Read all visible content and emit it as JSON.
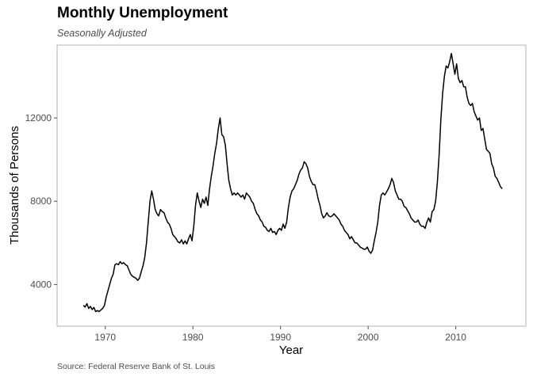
{
  "chart_data": {
    "type": "line",
    "title": "Monthly Unemployment",
    "subtitle": "Seasonally Adjusted",
    "caption": "Source: Federal Reserve Bank of St. Louis",
    "xlabel": "Year",
    "ylabel": "Thousands of Persons",
    "x_ticks": [
      1970,
      1980,
      1990,
      2000,
      2010
    ],
    "y_ticks": [
      4000,
      8000,
      12000
    ],
    "xlim": [
      1964.5,
      2018.0
    ],
    "ylim": [
      2000,
      15500
    ],
    "grid": false,
    "legend": "none",
    "line_color": "#000000",
    "series": [
      {
        "x": [
          1967.5,
          1967.7,
          1967.9,
          1968.1,
          1968.3,
          1968.5,
          1968.7,
          1968.9,
          1969.1,
          1969.3,
          1969.5,
          1969.7,
          1969.9,
          1970.1,
          1970.3,
          1970.5,
          1970.7,
          1970.9,
          1971.1,
          1971.3,
          1971.5,
          1971.7,
          1971.9,
          1972.1,
          1972.3,
          1972.5,
          1972.7,
          1972.9,
          1973.1,
          1973.3,
          1973.5,
          1973.7,
          1973.9,
          1974.1,
          1974.3,
          1974.5,
          1974.7,
          1974.9,
          1975.1,
          1975.3,
          1975.5,
          1975.7,
          1975.9,
          1976.1,
          1976.3,
          1976.5,
          1976.7,
          1976.9,
          1977.1,
          1977.3,
          1977.5,
          1977.7,
          1977.9,
          1978.1,
          1978.3,
          1978.5,
          1978.7,
          1978.9,
          1979.1,
          1979.3,
          1979.5,
          1979.7,
          1979.9,
          1980.1,
          1980.3,
          1980.5,
          1980.7,
          1980.9,
          1981.1,
          1981.3,
          1981.5,
          1981.7,
          1981.9,
          1982.1,
          1982.3,
          1982.5,
          1982.7,
          1982.9,
          1983.1,
          1983.3,
          1983.5,
          1983.7,
          1983.9,
          1984.1,
          1984.3,
          1984.5,
          1984.7,
          1984.9,
          1985.1,
          1985.3,
          1985.5,
          1985.7,
          1985.9,
          1986.1,
          1986.3,
          1986.5,
          1986.7,
          1986.9,
          1987.1,
          1987.3,
          1987.5,
          1987.7,
          1987.9,
          1988.1,
          1988.3,
          1988.5,
          1988.7,
          1988.9,
          1989.1,
          1989.3,
          1989.5,
          1989.7,
          1989.9,
          1990.1,
          1990.3,
          1990.5,
          1990.7,
          1990.9,
          1991.1,
          1991.3,
          1991.5,
          1991.7,
          1991.9,
          1992.1,
          1992.3,
          1992.5,
          1992.7,
          1992.9,
          1993.1,
          1993.3,
          1993.5,
          1993.7,
          1993.9,
          1994.1,
          1994.3,
          1994.5,
          1994.7,
          1994.9,
          1995.1,
          1995.3,
          1995.5,
          1995.7,
          1995.9,
          1996.1,
          1996.3,
          1996.5,
          1996.7,
          1996.9,
          1997.1,
          1997.3,
          1997.5,
          1997.7,
          1997.9,
          1998.1,
          1998.3,
          1998.5,
          1998.7,
          1998.9,
          1999.1,
          1999.3,
          1999.5,
          1999.7,
          1999.9,
          2000.1,
          2000.3,
          2000.5,
          2000.7,
          2000.9,
          2001.1,
          2001.3,
          2001.5,
          2001.7,
          2001.9,
          2002.1,
          2002.3,
          2002.5,
          2002.7,
          2002.9,
          2003.1,
          2003.3,
          2003.5,
          2003.7,
          2003.9,
          2004.1,
          2004.3,
          2004.5,
          2004.7,
          2004.9,
          2005.1,
          2005.3,
          2005.5,
          2005.7,
          2005.9,
          2006.1,
          2006.3,
          2006.5,
          2006.7,
          2006.9,
          2007.1,
          2007.3,
          2007.5,
          2007.7,
          2007.9,
          2008.1,
          2008.3,
          2008.5,
          2008.7,
          2008.9,
          2009.1,
          2009.3,
          2009.5,
          2009.7,
          2009.9,
          2010.1,
          2010.3,
          2010.5,
          2010.7,
          2010.9,
          2011.1,
          2011.3,
          2011.5,
          2011.7,
          2011.9,
          2012.1,
          2012.3,
          2012.5,
          2012.7,
          2012.9,
          2013.1,
          2013.3,
          2013.5,
          2013.7,
          2013.9,
          2014.1,
          2014.3,
          2014.5,
          2014.7,
          2014.9,
          2015.1,
          2015.3
        ],
        "values": [
          3000,
          2920,
          3080,
          2850,
          2950,
          2800,
          2900,
          2700,
          2750,
          2700,
          2780,
          2850,
          3000,
          3400,
          3700,
          4000,
          4300,
          4500,
          4950,
          5000,
          4950,
          5100,
          5000,
          5050,
          4950,
          4900,
          4700,
          4500,
          4400,
          4350,
          4300,
          4200,
          4300,
          4600,
          4900,
          5300,
          6000,
          7000,
          8000,
          8500,
          8100,
          7600,
          7400,
          7300,
          7600,
          7500,
          7450,
          7200,
          7000,
          6900,
          6700,
          6400,
          6300,
          6200,
          6050,
          6000,
          6150,
          5950,
          6100,
          5950,
          6200,
          6400,
          6100,
          6800,
          7800,
          8400,
          8000,
          7700,
          8100,
          7900,
          8200,
          7800,
          8600,
          9200,
          9700,
          10300,
          10800,
          11500,
          12000,
          11200,
          11100,
          10700,
          9800,
          9000,
          8600,
          8300,
          8400,
          8300,
          8400,
          8300,
          8200,
          8300,
          8100,
          8400,
          8300,
          8200,
          8000,
          7900,
          7600,
          7400,
          7300,
          7100,
          7000,
          6800,
          6750,
          6600,
          6550,
          6700,
          6500,
          6550,
          6400,
          6600,
          6700,
          6600,
          6900,
          6700,
          7000,
          7700,
          8200,
          8500,
          8600,
          8800,
          9000,
          9300,
          9500,
          9600,
          9900,
          9800,
          9600,
          9200,
          8950,
          8800,
          8800,
          8500,
          8100,
          7800,
          7400,
          7200,
          7300,
          7450,
          7300,
          7250,
          7300,
          7400,
          7300,
          7200,
          7100,
          6900,
          6800,
          6600,
          6500,
          6400,
          6200,
          6300,
          6150,
          6000,
          6000,
          5900,
          5800,
          5750,
          5700,
          5700,
          5800,
          5600,
          5500,
          5650,
          6100,
          6500,
          7000,
          7800,
          8300,
          8400,
          8300,
          8450,
          8600,
          8800,
          9100,
          8900,
          8500,
          8300,
          8100,
          8100,
          8000,
          7750,
          7700,
          7550,
          7400,
          7200,
          7100,
          7000,
          7000,
          7100,
          6900,
          6800,
          6800,
          6700,
          7000,
          7200,
          7000,
          7500,
          7600,
          8000,
          8900,
          10200,
          11900,
          13200,
          14000,
          14500,
          14400,
          14700,
          15100,
          14600,
          14100,
          14600,
          13900,
          13700,
          13800,
          13500,
          13500,
          13000,
          12700,
          12600,
          12700,
          12300,
          12100,
          11900,
          12000,
          11400,
          11500,
          11000,
          10500,
          10400,
          10300,
          9800,
          9600,
          9200,
          9100,
          8900,
          8700,
          8600
        ]
      }
    ]
  }
}
